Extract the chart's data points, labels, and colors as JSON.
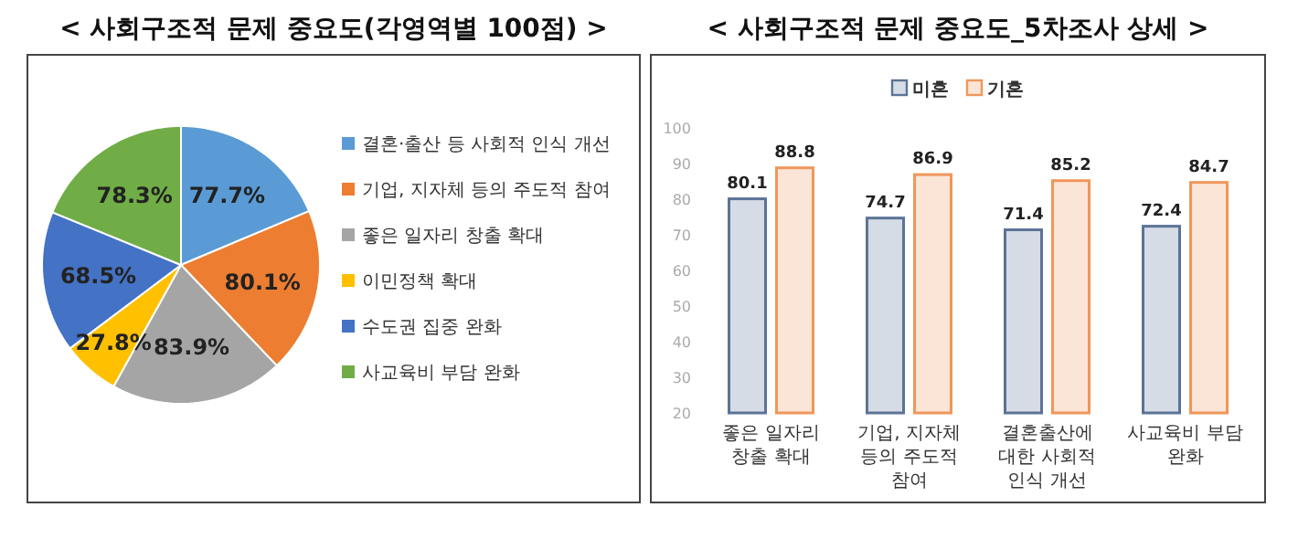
{
  "chart_data": [
    {
      "type": "pie",
      "title": "< 사회구조적 문제 중요도(각영역별 100점) >",
      "categories": [
        "결혼·출산 등 사회적 인식 개선",
        "기업, 지자체 등의 주도적 참여",
        "좋은 일자리 창출 확대",
        "이민정책 확대",
        "수도권 집중 완화",
        "사교육비 부담 완화"
      ],
      "values": [
        77.7,
        80.1,
        83.9,
        27.8,
        68.5,
        78.3
      ],
      "value_labels": [
        "77.7%",
        "80.1%",
        "83.9%",
        "27.8%",
        "68.5%",
        "78.3%"
      ],
      "colors": [
        "#5b9bd5",
        "#ed7d31",
        "#a5a5a5",
        "#ffc000",
        "#4472c4",
        "#70ad47"
      ],
      "legend": "right"
    },
    {
      "type": "bar",
      "title": "< 사회구조적 문제 중요도_5차조사 상세 >",
      "categories": [
        "좋은 일자리 창출 확대",
        "기업, 지자체 등의 주도적 참여",
        "결혼출산에 대한 사회적 인식 개선",
        "사교육비 부담 완화"
      ],
      "series": [
        {
          "name": "미혼",
          "color": "#d6dce5",
          "values": [
            80.1,
            74.7,
            71.4,
            72.4
          ]
        },
        {
          "name": "기혼",
          "color": "#fbe5d6",
          "values": [
            88.8,
            86.9,
            85.2,
            84.7
          ]
        }
      ],
      "ylim": [
        20,
        100
      ],
      "yticks": [
        20,
        30,
        40,
        50,
        60,
        70,
        80,
        90,
        100
      ],
      "data_labels": true,
      "legend": "top"
    }
  ]
}
